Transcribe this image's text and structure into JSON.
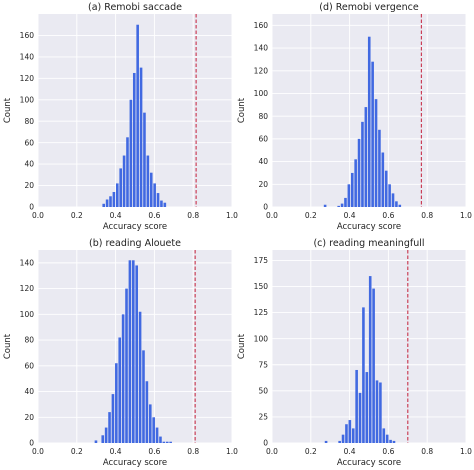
{
  "chart_data": [
    {
      "type": "bar",
      "title": "(a) Remobi saccade",
      "xlabel": "Accuracy score",
      "ylabel": "Count",
      "xlim": [
        0.0,
        1.0
      ],
      "ylim": [
        0,
        180
      ],
      "xticks": [
        "0.0",
        "0.2",
        "0.4",
        "0.6",
        "0.8",
        "1.0"
      ],
      "yticks": [
        "0",
        "20",
        "40",
        "60",
        "80",
        "100",
        "120",
        "140",
        "160"
      ],
      "ytick_values": [
        0,
        20,
        40,
        60,
        80,
        100,
        120,
        140,
        160
      ],
      "bin_edges_start": 0.33,
      "bin_width": 0.0175,
      "values": [
        3,
        7,
        10,
        14,
        22,
        36,
        48,
        65,
        100,
        125,
        170,
        130,
        88,
        48,
        32,
        22,
        13,
        6,
        4
      ],
      "threshold": 0.815,
      "grid": true
    },
    {
      "type": "bar",
      "title": "(d) Remobi vergence",
      "xlabel": "Accuracy score",
      "ylabel": "Count",
      "xlim": [
        0.0,
        1.0
      ],
      "ylim": [
        0,
        170
      ],
      "xticks": [
        "0.0",
        "0.2",
        "0.4",
        "0.6",
        "0.8",
        "1.0"
      ],
      "yticks": [
        "0",
        "20",
        "40",
        "60",
        "80",
        "100",
        "120",
        "140",
        "160"
      ],
      "ytick_values": [
        0,
        20,
        40,
        60,
        80,
        100,
        120,
        140,
        160
      ],
      "bin_edges_start": 0.265,
      "bin_width": 0.0175,
      "values": [
        2,
        0,
        0,
        0,
        1,
        3,
        8,
        20,
        30,
        42,
        60,
        75,
        88,
        150,
        128,
        95,
        68,
        48,
        32,
        20,
        12,
        5,
        2
      ],
      "threshold": 0.77,
      "grid": true
    },
    {
      "type": "bar",
      "title": "(b) reading Alouete",
      "xlabel": "Accuracy score",
      "ylabel": "Count",
      "xlim": [
        0.0,
        1.0
      ],
      "ylim": [
        0,
        150
      ],
      "xticks": [
        "0.0",
        "0.2",
        "0.4",
        "0.6",
        "0.8",
        "1.0"
      ],
      "yticks": [
        "0",
        "20",
        "40",
        "60",
        "80",
        "100",
        "120",
        "140"
      ],
      "ytick_values": [
        0,
        20,
        40,
        60,
        80,
        100,
        120,
        140
      ],
      "bin_edges_start": 0.29,
      "bin_width": 0.0175,
      "values": [
        2,
        0,
        6,
        12,
        24,
        38,
        62,
        82,
        100,
        120,
        142,
        142,
        138,
        102,
        72,
        48,
        30,
        20,
        12,
        5,
        1,
        1,
        1
      ],
      "threshold": 0.81,
      "grid": true
    },
    {
      "type": "bar",
      "title": "(c) reading meaningfull",
      "xlabel": "Accuracy score",
      "ylabel": "Count",
      "xlim": [
        0.0,
        1.0
      ],
      "ylim": [
        0,
        185
      ],
      "xticks": [
        "0.0",
        "0.2",
        "0.4",
        "0.6",
        "0.8",
        "1.0"
      ],
      "yticks": [
        "0",
        "25",
        "50",
        "75",
        "100",
        "125",
        "150",
        "175"
      ],
      "ytick_values": [
        0,
        25,
        50,
        75,
        100,
        125,
        150,
        175
      ],
      "bin_edges_start": 0.27,
      "bin_width": 0.0175,
      "values": [
        2,
        0,
        0,
        0,
        2,
        8,
        18,
        22,
        14,
        70,
        48,
        130,
        68,
        160,
        148,
        60,
        58,
        14,
        8,
        3,
        2
      ],
      "threshold": 0.7,
      "grid": true
    }
  ]
}
